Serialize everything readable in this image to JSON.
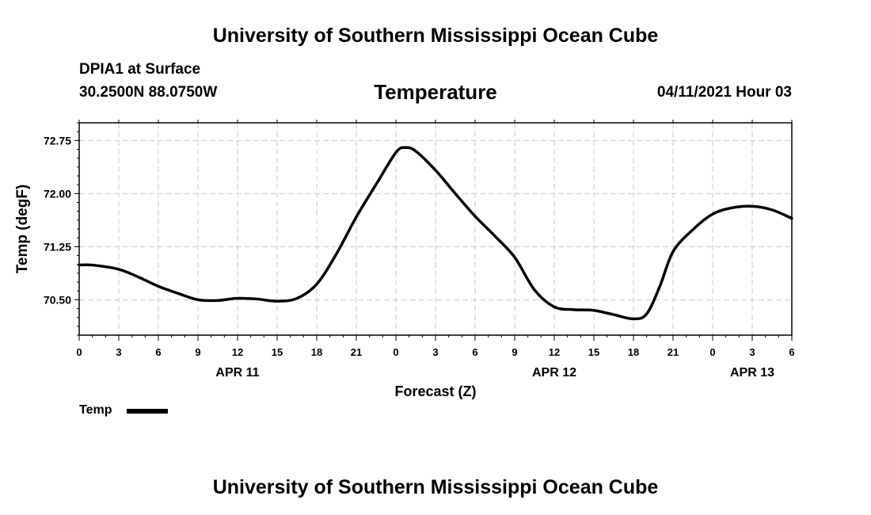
{
  "header": {
    "banner": "University of Southern Mississippi Ocean Cube",
    "station": "DPIA1 at Surface",
    "coords": "30.2500N  88.0750W",
    "timestamp": "04/11/2021 Hour 03"
  },
  "footer": {
    "banner": "University of Southern Mississippi Ocean Cube"
  },
  "chart_data": {
    "type": "line",
    "title": "Temperature",
    "xlabel": "Forecast (Z)",
    "ylabel": "Temp (degF)",
    "ylim": [
      70.0,
      73.0
    ],
    "xlim": [
      0,
      54
    ],
    "x_ticks": [
      0,
      3,
      6,
      9,
      12,
      15,
      18,
      21,
      24,
      27,
      30,
      33,
      36,
      39,
      42,
      45,
      48,
      51,
      54
    ],
    "x_tick_labels": [
      "0",
      "3",
      "6",
      "9",
      "12",
      "15",
      "18",
      "21",
      "0",
      "3",
      "6",
      "9",
      "12",
      "15",
      "18",
      "21",
      "0",
      "3",
      "6"
    ],
    "y_ticks": [
      70.5,
      71.25,
      72.0,
      72.75
    ],
    "y_tick_labels": [
      "70.50",
      "71.25",
      "72.00",
      "72.75"
    ],
    "date_labels": [
      {
        "x": 12,
        "label": "APR 11"
      },
      {
        "x": 36,
        "label": "APR 12"
      },
      {
        "x": 51,
        "label": "APR 13"
      }
    ],
    "grid": true,
    "legend": "bottom-left",
    "series": [
      {
        "name": "Temp",
        "color": "#000000",
        "x": [
          0,
          1,
          3,
          4.5,
          6,
          7.5,
          9,
          10.5,
          12,
          13.5,
          15,
          16.5,
          18,
          19.5,
          21,
          22.5,
          24,
          24.7,
          25.5,
          27,
          28.5,
          30,
          31.5,
          33,
          34.5,
          36,
          37.5,
          39,
          40.5,
          42,
          43,
          44,
          45,
          46.5,
          48,
          49.5,
          51,
          52.5,
          54
        ],
        "values": [
          70.99,
          70.99,
          70.93,
          70.82,
          70.69,
          70.59,
          70.5,
          70.49,
          70.52,
          70.51,
          70.48,
          70.52,
          70.72,
          71.15,
          71.67,
          72.13,
          72.58,
          72.65,
          72.6,
          72.33,
          72.0,
          71.68,
          71.4,
          71.1,
          70.64,
          70.4,
          70.36,
          70.35,
          70.29,
          70.23,
          70.3,
          70.69,
          71.18,
          71.49,
          71.71,
          71.8,
          71.82,
          71.77,
          71.65
        ]
      }
    ]
  }
}
